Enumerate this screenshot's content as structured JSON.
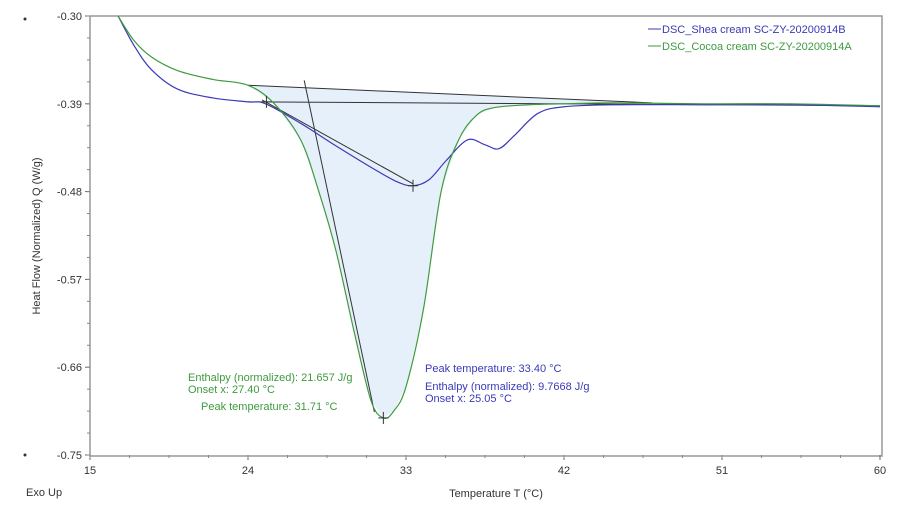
{
  "chart_data": {
    "type": "line",
    "title": "",
    "xlabel": "Temperature T (°C)",
    "ylabel": "Heat Flow (Normalized) Q (W/g)",
    "corner_label": "Exo Up",
    "xlim": [
      15,
      60
    ],
    "ylim": [
      -0.75,
      -0.3
    ],
    "xticks": [
      "15",
      "24",
      "33",
      "42",
      "51",
      "60"
    ],
    "xtick_values": [
      15,
      24,
      33,
      42,
      51,
      60
    ],
    "yticks": [
      "-0.30",
      "-0.39",
      "-0.48",
      "-0.57",
      "-0.66",
      "-0.75"
    ],
    "ytick_values": [
      -0.3,
      -0.39,
      -0.48,
      -0.57,
      -0.66,
      -0.75
    ],
    "legend_placement": "top-right",
    "series": [
      {
        "name": "DSC_Shea cream SC-ZY-20200914B",
        "color": "#3a3ab8",
        "x": [
          16.6,
          17.5,
          18.5,
          20,
          22,
          24,
          25,
          27,
          29,
          31,
          32.5,
          33.4,
          34.3,
          35.3,
          36.5,
          37.5,
          38.3,
          39.2,
          40.5,
          42,
          45,
          50,
          55,
          60
        ],
        "y": [
          -0.3,
          -0.33,
          -0.355,
          -0.375,
          -0.384,
          -0.388,
          -0.39,
          -0.41,
          -0.433,
          -0.455,
          -0.47,
          -0.474,
          -0.468,
          -0.448,
          -0.427,
          -0.432,
          -0.436,
          -0.422,
          -0.4,
          -0.393,
          -0.391,
          -0.391,
          -0.391,
          -0.393
        ]
      },
      {
        "name": "DSC_Cocoa cream SC-ZY-20200914A",
        "color": "#3f9a3f",
        "x": [
          16.6,
          17.5,
          18.5,
          20,
          22,
          24,
          25.5,
          27,
          28,
          29,
          30,
          31,
          31.71,
          32.3,
          33,
          34,
          35,
          36,
          37,
          38,
          40,
          42,
          45,
          50,
          55,
          60
        ],
        "y": [
          -0.3,
          -0.325,
          -0.342,
          -0.356,
          -0.365,
          -0.371,
          -0.39,
          -0.427,
          -0.478,
          -0.54,
          -0.62,
          -0.694,
          -0.712,
          -0.705,
          -0.68,
          -0.6,
          -0.48,
          -0.427,
          -0.402,
          -0.394,
          -0.391,
          -0.39,
          -0.389,
          -0.39,
          -0.39,
          -0.392
        ]
      }
    ],
    "baselines": [
      {
        "series": 1,
        "x": [
          24,
          47
        ],
        "y": [
          -0.371,
          -0.389
        ]
      },
      {
        "series": 0,
        "x": [
          24,
          60
        ],
        "y": [
          -0.388,
          -0.392
        ]
      }
    ],
    "tangents": [
      {
        "x": [
          27.2,
          31.2
        ],
        "y": [
          -0.366,
          -0.706
        ]
      },
      {
        "x": [
          24.8,
          33.4
        ],
        "y": [
          -0.386,
          -0.472
        ]
      }
    ],
    "markers": [
      {
        "series": 0,
        "x": 33.4,
        "y": -0.474
      },
      {
        "series": 0,
        "x": 25.05,
        "y": -0.388
      },
      {
        "series": 1,
        "x": 31.71,
        "y": -0.712
      }
    ],
    "annotations": {
      "cocoa": {
        "enthalpy": "Enthalpy (normalized): 21.657 J/g",
        "onset": "Onset x: 27.40 °C",
        "peak": "Peak temperature: 31.71 °C"
      },
      "shea": {
        "peak": "Peak temperature: 33.40 °C",
        "enthalpy": "Enthalpy (normalized): 9.7668 J/g",
        "onset": "Onset x: 25.05 °C"
      }
    },
    "fill_color": "#e6f0fa"
  }
}
